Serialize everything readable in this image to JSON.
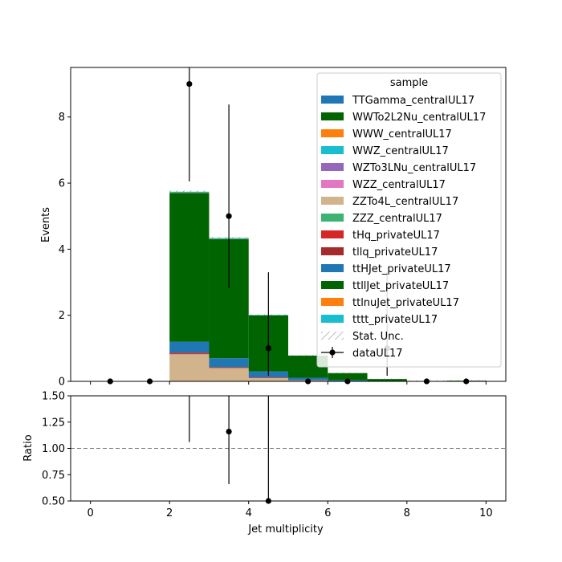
{
  "chart_data": [
    {
      "type": "bar",
      "stacked": true,
      "xlabel": "",
      "ylabel": "Events",
      "xlim": [
        -0.5,
        10.5
      ],
      "ylim": [
        0,
        9.5
      ],
      "yticks": [
        0,
        2,
        4,
        6,
        8
      ],
      "bin_edges": [
        0,
        1,
        2,
        3,
        4,
        5,
        6,
        7,
        8,
        9,
        10
      ],
      "legend": {
        "title": "sample",
        "placement": "top-right"
      },
      "series": [
        {
          "name": "TTGamma_centralUL17",
          "color": "#1f77b4",
          "values": [
            0,
            0,
            0,
            0,
            0,
            0,
            0,
            0,
            0,
            0
          ]
        },
        {
          "name": "WWTo2L2Nu_centralUL17",
          "color": "#006400",
          "values": [
            0,
            0,
            0,
            0,
            0,
            0,
            0,
            0,
            0,
            0
          ]
        },
        {
          "name": "WWW_centralUL17",
          "color": "#ff7f0e",
          "values": [
            0,
            0,
            0,
            0,
            0,
            0,
            0,
            0,
            0,
            0
          ]
        },
        {
          "name": "WWZ_centralUL17",
          "color": "#17becf",
          "values": [
            0,
            0,
            0,
            0,
            0,
            0,
            0,
            0,
            0,
            0
          ]
        },
        {
          "name": "WZTo3LNu_centralUL17",
          "color": "#9467bd",
          "values": [
            0,
            0,
            0,
            0,
            0,
            0,
            0,
            0,
            0,
            0
          ]
        },
        {
          "name": "WZZ_centralUL17",
          "color": "#e377c2",
          "values": [
            0,
            0,
            0,
            0,
            0,
            0,
            0,
            0,
            0,
            0
          ]
        },
        {
          "name": "ZZTo4L_centralUL17",
          "color": "#d2b48c",
          "values": [
            0,
            0,
            0.82,
            0.4,
            0.1,
            0.03,
            0.01,
            0,
            0,
            0
          ]
        },
        {
          "name": "ZZZ_centralUL17",
          "color": "#3cb371",
          "values": [
            0,
            0,
            0,
            0,
            0,
            0,
            0,
            0,
            0,
            0
          ]
        },
        {
          "name": "tHq_privateUL17",
          "color": "#d62728",
          "values": [
            0,
            0,
            0.02,
            0.01,
            0.01,
            0,
            0,
            0,
            0,
            0
          ]
        },
        {
          "name": "tllq_privateUL17",
          "color": "#a52a2a",
          "values": [
            0,
            0,
            0.03,
            0.02,
            0.01,
            0.01,
            0,
            0,
            0,
            0
          ]
        },
        {
          "name": "ttHJet_privateUL17",
          "color": "#1f77b4",
          "values": [
            0,
            0,
            0.33,
            0.27,
            0.18,
            0.07,
            0.03,
            0.01,
            0,
            0
          ]
        },
        {
          "name": "ttllJet_privateUL17",
          "color": "#006400",
          "values": [
            0,
            0,
            4.5,
            3.6,
            1.7,
            0.67,
            0.21,
            0.06,
            0.01,
            0.02
          ]
        },
        {
          "name": "ttlnuJet_privateUL17",
          "color": "#ff7f0e",
          "values": [
            0,
            0,
            0.01,
            0.01,
            0,
            0,
            0,
            0,
            0,
            0
          ]
        },
        {
          "name": "tttt_privateUL17",
          "color": "#17becf",
          "values": [
            0,
            0,
            0.03,
            0.03,
            0.01,
            0,
            0,
            0,
            0,
            0
          ]
        }
      ],
      "stat_unc_label": "Stat. Unc.",
      "data_points": {
        "name": "dataUL17",
        "x": [
          0.5,
          1.5,
          2.5,
          3.5,
          4.5,
          5.5,
          6.5,
          7.5,
          8.5,
          9.5
        ],
        "y": [
          0,
          0,
          9,
          5,
          1,
          0,
          0,
          1,
          0,
          0
        ],
        "err_low": [
          0,
          0,
          2.95,
          2.18,
          0.83,
          0,
          0,
          0.83,
          0,
          0
        ],
        "err_high": [
          0,
          0,
          4.11,
          3.38,
          2.3,
          0,
          0,
          2.3,
          0,
          0
        ]
      }
    },
    {
      "type": "scatter",
      "xlabel": "Jet multiplicity",
      "ylabel": "Ratio",
      "xlim": [
        -0.5,
        10.5
      ],
      "ylim": [
        0.5,
        1.5
      ],
      "xticks": [
        0,
        2,
        4,
        6,
        8,
        10
      ],
      "yticks": [
        "0.50",
        "0.75",
        "1.00",
        "1.25",
        "1.50"
      ],
      "reference_line": 1.0,
      "points": {
        "x": [
          2.5,
          3.5,
          4.5
        ],
        "y": [
          1.58,
          1.16,
          0.5
        ],
        "err_low": [
          0.52,
          0.5,
          0.42
        ],
        "err_high": [
          0.72,
          0.79,
          1.15
        ]
      }
    }
  ]
}
